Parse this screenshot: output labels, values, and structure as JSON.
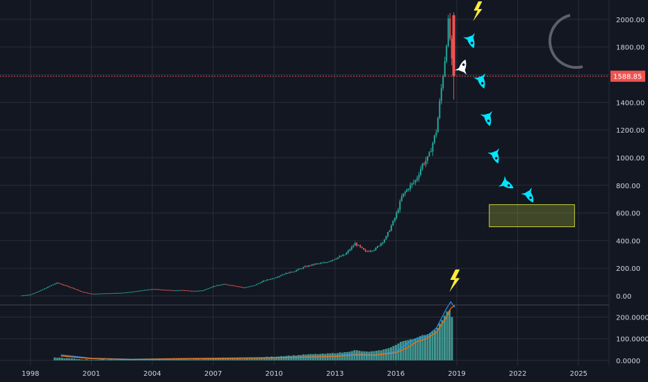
{
  "colors": {
    "background": "#131722",
    "grid": "#2a2e39",
    "up": "#26a69a",
    "down": "#ef5350",
    "price_line": "#ef5350",
    "ma_fast": "#2196f3",
    "ma_slow": "#ff6d00",
    "volume": "#4db6ac",
    "target_zone": "#c8d43a",
    "drawings": "#00e5ff",
    "lightning": "#ffeb3b"
  },
  "chart_data": [
    {
      "type": "candlestick",
      "title": "",
      "xlabel": "",
      "ylabel": "",
      "x_ticks": [
        "1998",
        "2001",
        "2004",
        "2007",
        "2010",
        "2013",
        "2016",
        "2019",
        "2022",
        "2025"
      ],
      "y_ticks": [
        "0.00",
        "200.00",
        "400.00",
        "600.00",
        "800.00",
        "1000.00",
        "1200.00",
        "1400.00",
        "1600.00",
        "1800.00",
        "2000.00"
      ],
      "ylim": [
        -60,
        2140
      ],
      "xlim": [
        1996.5,
        2026.5
      ],
      "last_price_label": "1588.85",
      "last_price": 1588.85,
      "scale": "linear",
      "grid": true,
      "series": [
        {
          "x": [
            1997.5,
            1998.0,
            1998.5,
            1999.0,
            1999.3,
            1999.7,
            2000.0,
            2000.5,
            2001.0,
            2001.5,
            2002.0,
            2002.5,
            2003.0,
            2003.5,
            2004.0,
            2004.5,
            2005.0,
            2005.5,
            2006.0,
            2006.5,
            2007.0,
            2007.5,
            2008.0,
            2008.5,
            2009.0,
            2009.5,
            2010.0,
            2010.5,
            2011.0,
            2011.5,
            2012.0,
            2012.5,
            2013.0,
            2013.5,
            2014.0,
            2014.5,
            2015.0,
            2015.5,
            2016.0,
            2016.3,
            2016.6,
            2017.0,
            2017.3,
            2017.6,
            2018.0,
            2018.2,
            2018.4,
            2018.6,
            2018.8
          ],
          "values": [
            2,
            10,
            40,
            75,
            95,
            75,
            60,
            30,
            15,
            18,
            20,
            22,
            30,
            40,
            50,
            45,
            40,
            42,
            35,
            40,
            70,
            85,
            75,
            60,
            75,
            110,
            130,
            160,
            180,
            210,
            230,
            240,
            270,
            300,
            380,
            320,
            340,
            420,
            580,
            720,
            780,
            840,
            950,
            1000,
            1200,
            1450,
            1700,
            2000,
            1580
          ]
        }
      ],
      "annotations": {
        "target_zone_range": [
          500,
          660
        ],
        "target_zone_x": [
          2020.6,
          2024.8
        ]
      }
    },
    {
      "type": "line",
      "y_ticks": [
        "0.0000",
        "100.0000",
        "200.0000"
      ],
      "ylim": [
        -10,
        240
      ],
      "series": [
        {
          "name": "",
          "color": "#2196f3",
          "x": [
            1999.5,
            2001,
            2003,
            2005,
            2007,
            2009,
            2011,
            2013,
            2014,
            2015,
            2016,
            2016.6,
            2017,
            2017.5,
            2018,
            2018.5,
            2018.7,
            2018.9
          ],
          "values": [
            25,
            10,
            5,
            8,
            10,
            12,
            15,
            20,
            30,
            25,
            40,
            80,
            100,
            110,
            150,
            240,
            270,
            245
          ]
        },
        {
          "name": "",
          "color": "#ff6d00",
          "x": [
            1999.5,
            2001,
            2003,
            2005,
            2007,
            2009,
            2011,
            2013,
            2014,
            2015,
            2016,
            2016.6,
            2017,
            2017.5,
            2018,
            2018.5,
            2018.7,
            2018.9
          ],
          "values": [
            20,
            8,
            4,
            7,
            9,
            11,
            14,
            18,
            25,
            24,
            35,
            60,
            85,
            100,
            130,
            200,
            240,
            255
          ]
        }
      ]
    }
  ],
  "drawings": {
    "moon": "crescent-moon",
    "rocket": "rocket",
    "lightning": "lightning-bolt"
  }
}
